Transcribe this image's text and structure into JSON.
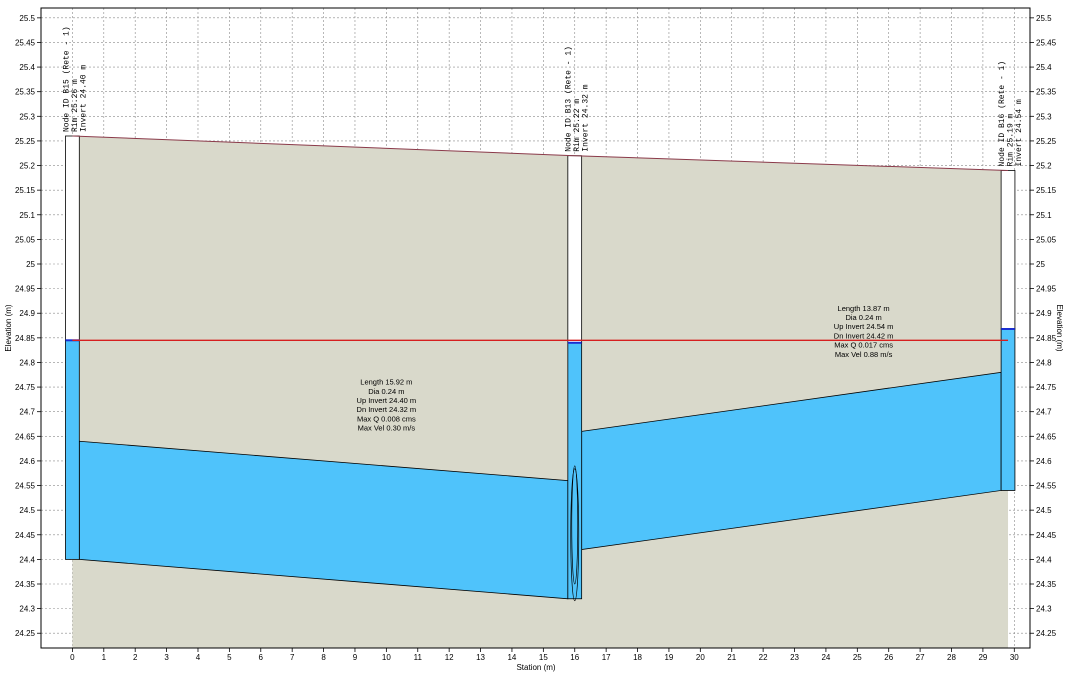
{
  "chart_data": {
    "type": "profile",
    "xlabel": "Station (m)",
    "ylabel": "Elevation (m)",
    "xlim": [
      -1,
      30.5
    ],
    "ylim": [
      24.22,
      25.52
    ],
    "x_ticks": [
      "0",
      "1",
      "2",
      "3",
      "4",
      "5",
      "6",
      "7",
      "8",
      "9",
      "10",
      "11",
      "12",
      "13",
      "14",
      "15",
      "16",
      "17",
      "18",
      "19",
      "20",
      "21",
      "22",
      "23",
      "24",
      "25",
      "26",
      "27",
      "28",
      "29",
      "30"
    ],
    "y_ticks": [
      "24.25",
      "24.3",
      "24.35",
      "24.4",
      "24.45",
      "24.5",
      "24.55",
      "24.6",
      "24.65",
      "24.7",
      "24.75",
      "24.8",
      "24.85",
      "24.9",
      "24.95",
      "25",
      "25.05",
      "25.1",
      "25.15",
      "25.2",
      "25.25",
      "25.3",
      "25.35",
      "25.4",
      "25.45",
      "25.5"
    ],
    "ground_surface": {
      "x": [
        0,
        16,
        29.8
      ],
      "y": [
        25.26,
        25.22,
        25.19
      ]
    },
    "hydraulic_grade": {
      "x": [
        0,
        29.8
      ],
      "y": [
        24.845,
        24.845
      ]
    },
    "nodes": [
      {
        "station": 0,
        "rim": 25.26,
        "invert": 24.4,
        "water": 24.845,
        "label_lines": [
          "Node ID B15 (Rete - 1)",
          "Rim 25.26 m",
          "Invert 24.40 m"
        ]
      },
      {
        "station": 16,
        "rim": 25.22,
        "invert": 24.32,
        "water": 24.84,
        "label_lines": [
          "Node ID B13 (Rete - 1)",
          "Rim 25.22 m",
          "Invert 24.32 m"
        ]
      },
      {
        "station": 29.8,
        "rim": 25.19,
        "invert": 24.54,
        "water": 24.868,
        "label_lines": [
          "Node ID B16 (Rete - 1)",
          "Rim 25.19 m",
          "Invert 24.54 m"
        ]
      }
    ],
    "links": [
      {
        "from_station": 0,
        "to_station": 16,
        "up_invert": 24.4,
        "dn_invert": 24.32,
        "diameter": 0.24,
        "annotation": [
          "Length 15.92 m",
          "Dia 0.24 m",
          "Up Invert 24.40 m",
          "Dn Invert 24.32 m",
          "Max Q 0.008 cms",
          "Max Vel 0.30 m/s"
        ]
      },
      {
        "from_station": 16,
        "to_station": 29.8,
        "up_invert": 24.42,
        "dn_invert": 24.54,
        "diameter": 0.24,
        "annotation": [
          "Length 13.87 m",
          "Dia 0.24 m",
          "Up Invert 24.54 m",
          "Dn Invert 24.42 m",
          "Max Q 0.017 cms",
          "Max Vel 0.88 m/s"
        ]
      }
    ],
    "colors": {
      "ground_fill": "#d9d9cb",
      "water": "#4fc3fb",
      "hgl": "#d61f1f",
      "ground_line": "#8b3a4a",
      "node_water_mark": "#1a2ed1"
    },
    "grid": true
  }
}
